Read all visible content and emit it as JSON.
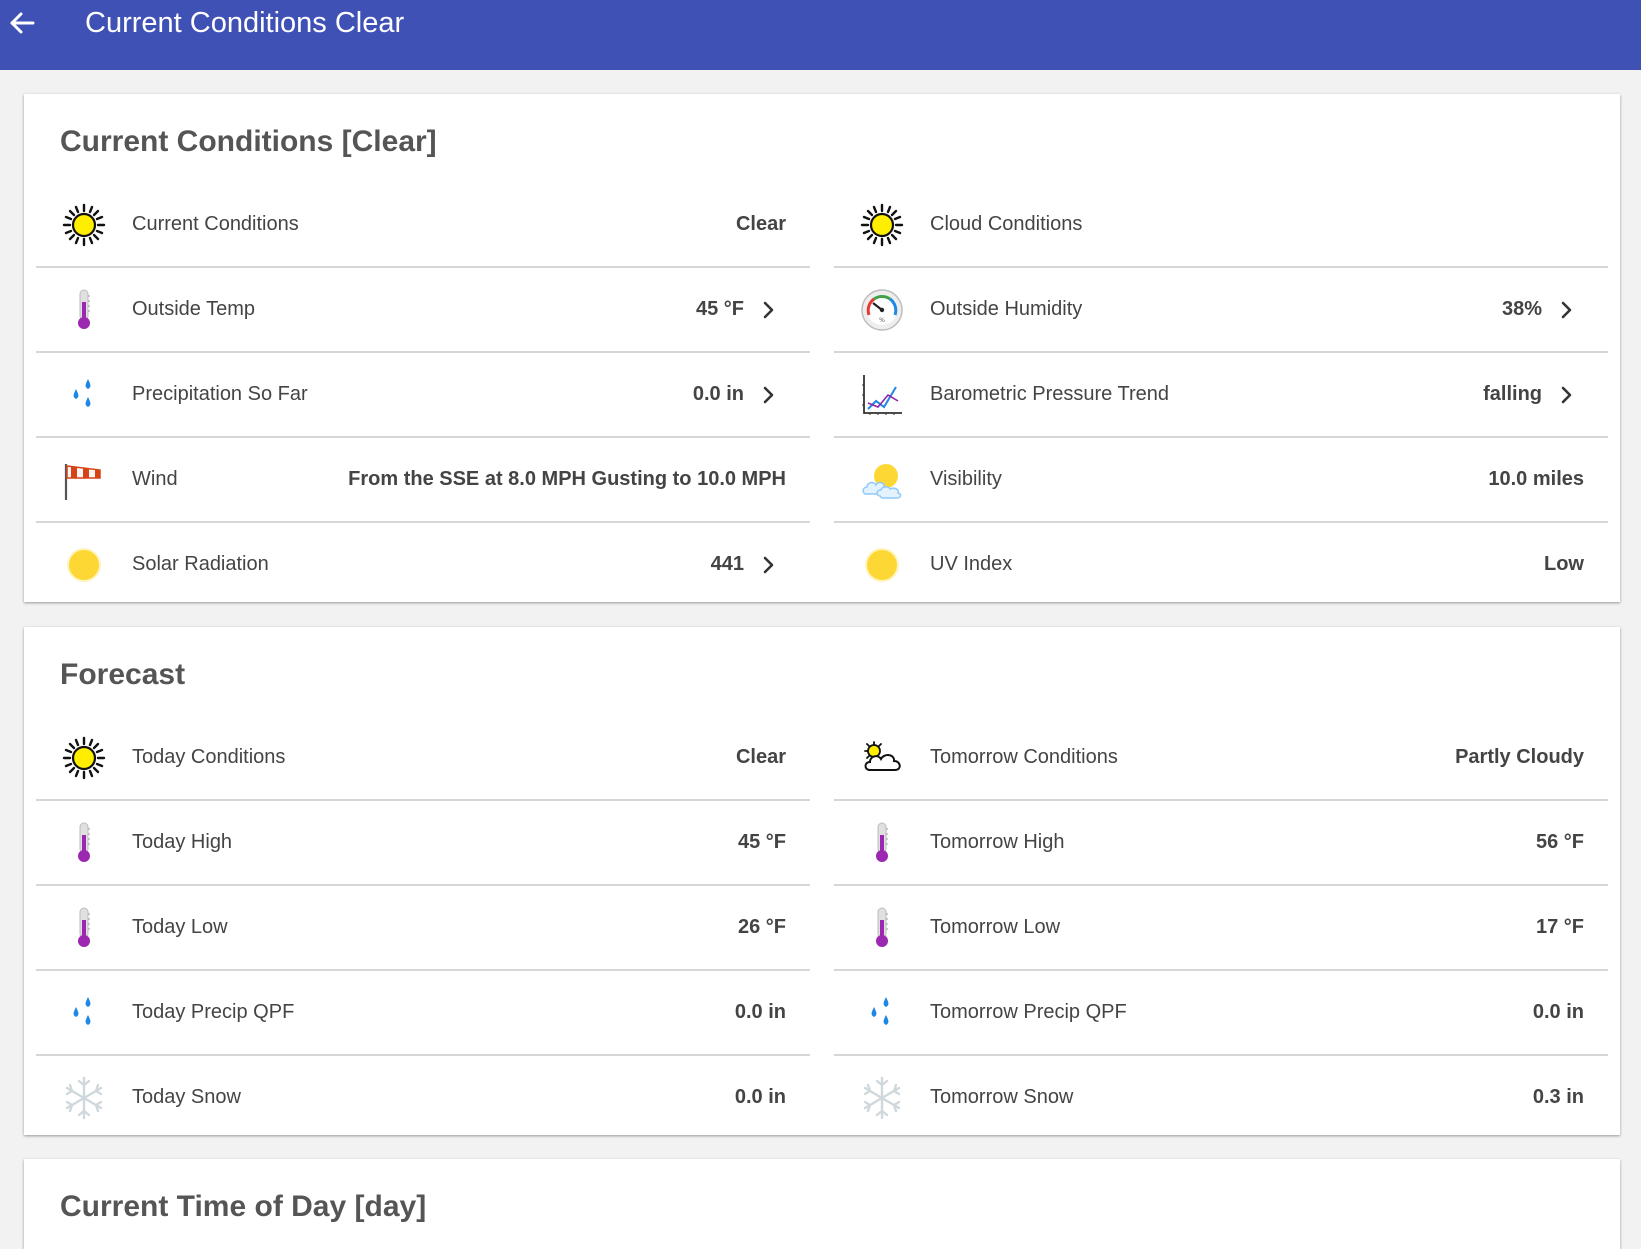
{
  "header": {
    "title": "Current Conditions Clear"
  },
  "current": {
    "title": "Current Conditions [Clear]",
    "left": [
      {
        "label": "Current Conditions",
        "value": "Clear"
      },
      {
        "label": "Outside Temp",
        "value": "45 °F"
      },
      {
        "label": "Precipitation So Far",
        "value": "0.0 in"
      },
      {
        "label": "Wind",
        "value": "From the SSE at 8.0 MPH Gusting to 10.0 MPH"
      },
      {
        "label": "Solar Radiation",
        "value": "441"
      }
    ],
    "right": [
      {
        "label": "Cloud Conditions",
        "value": ""
      },
      {
        "label": "Outside Humidity",
        "value": "38%"
      },
      {
        "label": "Barometric Pressure Trend",
        "value": "falling"
      },
      {
        "label": "Visibility",
        "value": "10.0 miles"
      },
      {
        "label": "UV Index",
        "value": "Low"
      }
    ]
  },
  "forecast": {
    "title": "Forecast",
    "left": [
      {
        "label": "Today Conditions",
        "value": "Clear"
      },
      {
        "label": "Today High",
        "value": "45 °F"
      },
      {
        "label": "Today Low",
        "value": "26 °F"
      },
      {
        "label": "Today Precip QPF",
        "value": "0.0 in"
      },
      {
        "label": "Today Snow",
        "value": "0.0 in"
      }
    ],
    "right": [
      {
        "label": "Tomorrow Conditions",
        "value": "Partly Cloudy"
      },
      {
        "label": "Tomorrow High",
        "value": "56 °F"
      },
      {
        "label": "Tomorrow Low",
        "value": "17 °F"
      },
      {
        "label": "Tomorrow Precip QPF",
        "value": "0.0 in"
      },
      {
        "label": "Tomorrow Snow",
        "value": "0.3 in"
      }
    ]
  },
  "time_of_day": {
    "title": "Current Time of Day [day]"
  },
  "icons": {
    "back": "arrow-left-icon",
    "chevron": "chevron-right-icon",
    "sun": "sun-icon",
    "thermometer": "thermometer-icon",
    "raindrops": "raindrops-icon",
    "windsock": "windsock-icon",
    "solar": "solar-disc-icon",
    "humidity": "humidity-gauge-icon",
    "pressure": "pressure-trend-chart-icon",
    "visibility": "sun-cloud-icon",
    "partly_cloudy": "partly-cloudy-icon",
    "snow": "snowflake-icon"
  },
  "colors": {
    "header": "#3f51b5",
    "background": "#f2f2f2",
    "card": "#ffffff",
    "thermometer": "#9c27b0",
    "raindrop": "#1e88e5",
    "sun": "#ffeb3b"
  }
}
